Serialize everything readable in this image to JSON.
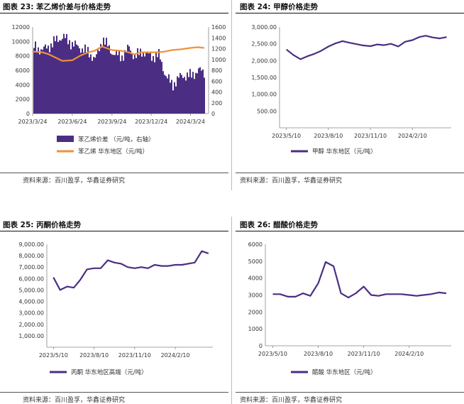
{
  "charts": [
    {
      "title": "图表 23: 苯乙烯价差与价格走势",
      "source": "资料来源：百川盈孚，华鑫证券研究",
      "chart_data": {
        "type": "bar",
        "x_tick_labels": [
          "2023/3/24",
          "2023/6/24",
          "2023/9/24",
          "2023/12/24",
          "2024/3/24"
        ],
        "left_axis": {
          "ylim": [
            0,
            12000
          ],
          "ticks": [
            "0",
            "2000",
            "4000",
            "6000",
            "8000",
            "10000",
            "12000"
          ]
        },
        "right_axis": {
          "ylim": [
            0,
            1600
          ],
          "ticks": [
            "0",
            "200",
            "400",
            "600",
            "800",
            "1000",
            "1200",
            "1400",
            "1600"
          ]
        },
        "series": [
          {
            "name": "苯乙烯价差 （元/吨，右轴）",
            "type": "bar",
            "axis": "right",
            "color": "#4b2e83",
            "x": [
              "2023/3/24",
              "2023/4/15",
              "2023/5/1",
              "2023/5/15",
              "2023/6/1",
              "2023/6/24",
              "2023/7/15",
              "2023/8/1",
              "2023/8/15",
              "2023/9/1",
              "2023/9/24",
              "2023/10/15",
              "2023/11/1",
              "2023/11/15",
              "2023/12/1",
              "2023/12/24",
              "2024/1/10",
              "2024/1/25",
              "2024/2/10",
              "2024/3/1",
              "2024/3/24",
              "2024/4/10",
              "2024/4/25"
            ],
            "values": [
              1230,
              1180,
              1250,
              1350,
              1420,
              1280,
              1200,
              1120,
              1000,
              1380,
              1120,
              1050,
              1220,
              1050,
              1150,
              1050,
              1080,
              700,
              530,
              700,
              700,
              800,
              760
            ]
          },
          {
            "name": "苯乙烯 华东地区（元/吨）",
            "type": "line",
            "axis": "left",
            "color": "#f0923a",
            "x": [
              "2023/3/24",
              "2023/4/15",
              "2023/5/1",
              "2023/5/15",
              "2023/6/1",
              "2023/6/24",
              "2023/7/15",
              "2023/8/1",
              "2023/8/15",
              "2023/9/1",
              "2023/9/24",
              "2023/10/15",
              "2023/11/1",
              "2023/11/15",
              "2023/12/1",
              "2023/12/24",
              "2024/1/10",
              "2024/1/25",
              "2024/2/10",
              "2024/3/1",
              "2024/3/24",
              "2024/4/10",
              "2024/4/25"
            ],
            "values": [
              8600,
              8500,
              8200,
              7800,
              7300,
              7400,
              8100,
              8500,
              8700,
              9300,
              8800,
              8700,
              8500,
              8200,
              8500,
              8500,
              8500,
              8600,
              8800,
              8900,
              9100,
              9200,
              9100
            ]
          }
        ],
        "legend_placement": "bottom"
      }
    },
    {
      "title": "图表 24: 甲醇价格走势",
      "source": "资料来源：百川盈孚，华鑫证券研究",
      "chart_data": {
        "type": "line",
        "x_tick_labels": [
          "2023/5/10",
          "2023/8/10",
          "2023/11/10",
          "2024/2/10"
        ],
        "ylim": [
          0,
          3000
        ],
        "y_ticks": [
          "500.00",
          "1,000.00",
          "1,500.00",
          "2,000.00",
          "2,500.00",
          "3,000.00"
        ],
        "series": [
          {
            "name": "甲醇 华东地区（元/吨）",
            "color": "#4b2e83",
            "x": [
              "2023/5/10",
              "2023/5/25",
              "2023/6/10",
              "2023/6/25",
              "2023/7/10",
              "2023/7/25",
              "2023/8/10",
              "2023/8/25",
              "2023/9/10",
              "2023/9/25",
              "2023/10/10",
              "2023/10/25",
              "2023/11/10",
              "2023/11/25",
              "2023/12/10",
              "2023/12/25",
              "2024/1/10",
              "2024/1/25",
              "2024/2/10",
              "2024/2/25",
              "2024/3/10",
              "2024/3/25",
              "2024/4/10",
              "2024/4/25"
            ],
            "values": [
              2330,
              2170,
              2040,
              2130,
              2200,
              2290,
              2420,
              2510,
              2580,
              2530,
              2490,
              2450,
              2430,
              2480,
              2460,
              2500,
              2420,
              2560,
              2610,
              2700,
              2740,
              2690,
              2660,
              2700
            ]
          }
        ],
        "legend_placement": "bottom"
      }
    },
    {
      "title": "图表 25: 丙酮价格走势",
      "source": "资料来源：百川盈孚，华鑫证券研究",
      "chart_data": {
        "type": "line",
        "x_tick_labels": [
          "2023/5/10",
          "2023/8/10",
          "2023/11/10",
          "2024/2/10"
        ],
        "ylim": [
          0,
          9000
        ],
        "y_ticks": [
          "1,000.00",
          "2,000.00",
          "3,000.00",
          "4,000.00",
          "5,000.00",
          "6,000.00",
          "7,000.00",
          "8,000.00",
          "9,000.00"
        ],
        "series": [
          {
            "name": "丙酮 华东地区高端（元/吨）",
            "color": "#4b2e83",
            "x": [
              "2023/5/10",
              "2023/5/25",
              "2023/6/10",
              "2023/6/25",
              "2023/7/10",
              "2023/7/25",
              "2023/8/10",
              "2023/8/25",
              "2023/9/10",
              "2023/9/25",
              "2023/10/10",
              "2023/10/25",
              "2023/11/10",
              "2023/11/25",
              "2023/12/10",
              "2023/12/25",
              "2024/1/10",
              "2024/1/25",
              "2024/2/10",
              "2024/2/25",
              "2024/3/10",
              "2024/3/25",
              "2024/4/10",
              "2024/4/25"
            ],
            "values": [
              6100,
              5000,
              5300,
              5200,
              5900,
              6800,
              6900,
              6900,
              7600,
              7400,
              7300,
              7000,
              6900,
              7000,
              6900,
              7200,
              7100,
              7100,
              7200,
              7200,
              7300,
              7400,
              8400,
              8200
            ]
          }
        ],
        "legend_placement": "bottom"
      }
    },
    {
      "title": "图表 26: 醋酸价格走势",
      "source": "资料来源：百川盈孚，华鑫证券研究",
      "chart_data": {
        "type": "line",
        "x_tick_labels": [
          "2023/5/10",
          "2023/8/10",
          "2023/11/10",
          "2024/2/10"
        ],
        "ylim": [
          0,
          6000
        ],
        "y_ticks": [
          "0",
          "1000",
          "2000",
          "3000",
          "4000",
          "5000",
          "6000"
        ],
        "series": [
          {
            "name": "醋酸 华东地区（元/吨）",
            "color": "#4b2e83",
            "x": [
              "2023/5/10",
              "2023/5/25",
              "2023/6/10",
              "2023/6/25",
              "2023/7/10",
              "2023/7/25",
              "2023/8/10",
              "2023/8/25",
              "2023/9/10",
              "2023/9/25",
              "2023/10/10",
              "2023/10/25",
              "2023/11/10",
              "2023/11/25",
              "2023/12/10",
              "2023/12/25",
              "2024/1/10",
              "2024/1/25",
              "2024/2/10",
              "2024/2/25",
              "2024/3/10",
              "2024/3/25",
              "2024/4/10",
              "2024/4/25"
            ],
            "values": [
              3050,
              3050,
              2900,
              2900,
              3100,
              2950,
              3700,
              4950,
              4700,
              3100,
              2850,
              3100,
              3500,
              3000,
              2950,
              3050,
              3050,
              3050,
              3000,
              2950,
              3000,
              3050,
              3150,
              3100
            ]
          }
        ],
        "legend_placement": "bottom"
      }
    }
  ]
}
